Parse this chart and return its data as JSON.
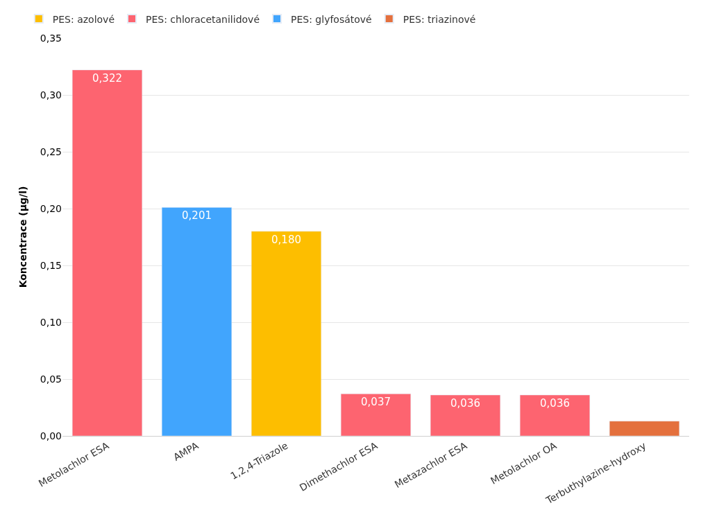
{
  "chart_data": {
    "type": "bar",
    "ylabel": "Koncentrace (µg/l)",
    "categories": [
      "Metolachlor ESA",
      "AMPA",
      "1,2,4-Triazole",
      "Dimethachlor ESA",
      "Metazachlor ESA",
      "Metolachlor OA",
      "Terbuthylazine-hydroxy"
    ],
    "series": [
      {
        "name": "PES: azolové",
        "color": "#fdbe00",
        "values": [
          null,
          null,
          0.18,
          null,
          null,
          null,
          null
        ],
        "value_labels": [
          null,
          null,
          "0,180",
          null,
          null,
          null,
          null
        ]
      },
      {
        "name": "PES: chloracetanilidové",
        "color": "#fd6470",
        "values": [
          0.322,
          null,
          null,
          0.037,
          0.036,
          0.036,
          null
        ],
        "value_labels": [
          "0,322",
          null,
          null,
          "0,037",
          "0,036",
          "0,036",
          null
        ]
      },
      {
        "name": "PES: glyfosátové",
        "color": "#41a5fd",
        "values": [
          null,
          0.201,
          null,
          null,
          null,
          null,
          null
        ],
        "value_labels": [
          null,
          "0,201",
          null,
          null,
          null,
          null,
          null
        ]
      },
      {
        "name": "PES: triazinové",
        "color": "#e4703d",
        "values": [
          null,
          null,
          null,
          null,
          null,
          null,
          0.013
        ],
        "value_labels": [
          null,
          null,
          null,
          null,
          null,
          null,
          null
        ]
      }
    ],
    "ylim": [
      0,
      0.35
    ],
    "yticks": [
      {
        "value": 0,
        "label": "0,00"
      },
      {
        "value": 0.05,
        "label": "0,05"
      },
      {
        "value": 0.1,
        "label": "0,10"
      },
      {
        "value": 0.15,
        "label": "0,15"
      },
      {
        "value": 0.2,
        "label": "0,20"
      },
      {
        "value": 0.25,
        "label": "0,25"
      },
      {
        "value": 0.3,
        "label": "0,30"
      },
      {
        "value": 0.35,
        "label": "0,35"
      }
    ],
    "grid": "y",
    "legend": "top left"
  }
}
